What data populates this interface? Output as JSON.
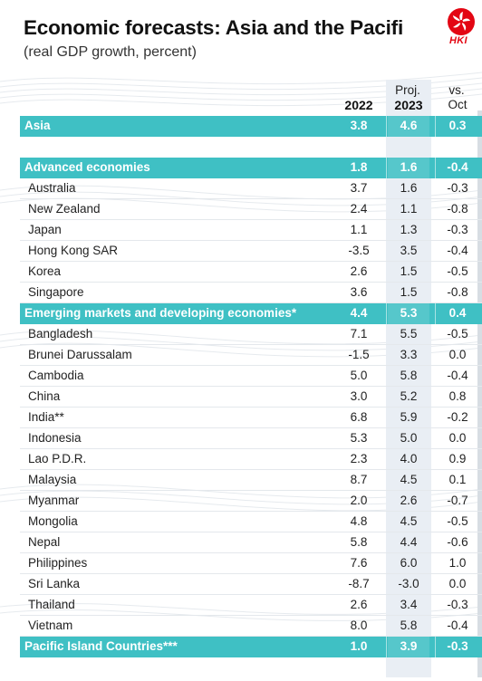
{
  "title": "Economic forecasts: Asia and the Pacifi",
  "subtitle": "(real GDP growth, percent)",
  "logo_text": "HKI",
  "columns": {
    "col1_top": "",
    "col1": "2022",
    "col2_top": "Proj.",
    "col2": "2023",
    "col3_top": "vs.",
    "col3": "Oct"
  },
  "chart_data": {
    "type": "table",
    "title": "Economic forecasts: Asia and the Pacifi",
    "subtitle": "(real GDP growth, percent)",
    "headers": [
      "",
      "2022",
      "Proj. 2023",
      "vs. Oct"
    ],
    "rows": [
      {
        "label": "Asia",
        "kind": "band",
        "values": [
          "3.8",
          "4.6",
          "0.3"
        ]
      },
      {
        "label": "",
        "kind": "blank",
        "values": [
          "",
          "",
          ""
        ]
      },
      {
        "label": "Advanced economies",
        "kind": "band",
        "values": [
          "1.8",
          "1.6",
          "-0.4"
        ]
      },
      {
        "label": "Australia",
        "kind": "country",
        "values": [
          "3.7",
          "1.6",
          "-0.3"
        ]
      },
      {
        "label": "New Zealand",
        "kind": "country",
        "values": [
          "2.4",
          "1.1",
          "-0.8"
        ]
      },
      {
        "label": "Japan",
        "kind": "country",
        "values": [
          "1.1",
          "1.3",
          "-0.3"
        ]
      },
      {
        "label": "Hong Kong SAR",
        "kind": "country",
        "values": [
          "-3.5",
          "3.5",
          "-0.4"
        ]
      },
      {
        "label": "Korea",
        "kind": "country",
        "values": [
          "2.6",
          "1.5",
          "-0.5"
        ]
      },
      {
        "label": "Singapore",
        "kind": "country",
        "values": [
          "3.6",
          "1.5",
          "-0.8"
        ]
      },
      {
        "label": "Emerging markets and developing economies*",
        "kind": "band",
        "values": [
          "4.4",
          "5.3",
          "0.4"
        ]
      },
      {
        "label": "Bangladesh",
        "kind": "country",
        "values": [
          "7.1",
          "5.5",
          "-0.5"
        ]
      },
      {
        "label": "Brunei Darussalam",
        "kind": "country",
        "values": [
          "-1.5",
          "3.3",
          "0.0"
        ]
      },
      {
        "label": "Cambodia",
        "kind": "country",
        "values": [
          "5.0",
          "5.8",
          "-0.4"
        ]
      },
      {
        "label": "China",
        "kind": "country",
        "values": [
          "3.0",
          "5.2",
          "0.8"
        ]
      },
      {
        "label": "India**",
        "kind": "country",
        "values": [
          "6.8",
          "5.9",
          "-0.2"
        ]
      },
      {
        "label": "Indonesia",
        "kind": "country",
        "values": [
          "5.3",
          "5.0",
          "0.0"
        ]
      },
      {
        "label": "Lao P.D.R.",
        "kind": "country",
        "values": [
          "2.3",
          "4.0",
          "0.9"
        ]
      },
      {
        "label": "Malaysia",
        "kind": "country",
        "values": [
          "8.7",
          "4.5",
          "0.1"
        ]
      },
      {
        "label": "Myanmar",
        "kind": "country",
        "values": [
          "2.0",
          "2.6",
          "-0.7"
        ]
      },
      {
        "label": "Mongolia",
        "kind": "country",
        "values": [
          "4.8",
          "4.5",
          "-0.5"
        ]
      },
      {
        "label": "Nepal",
        "kind": "country",
        "values": [
          "5.8",
          "4.4",
          "-0.6"
        ]
      },
      {
        "label": "Philippines",
        "kind": "country",
        "values": [
          "7.6",
          "6.0",
          "1.0"
        ]
      },
      {
        "label": "Sri Lanka",
        "kind": "country",
        "values": [
          "-8.7",
          "-3.0",
          "0.0"
        ]
      },
      {
        "label": "Thailand",
        "kind": "country",
        "values": [
          "2.6",
          "3.4",
          "-0.3"
        ]
      },
      {
        "label": "Vietnam",
        "kind": "country",
        "values": [
          "8.0",
          "5.8",
          "-0.4"
        ]
      },
      {
        "label": "Pacific Island Countries***",
        "kind": "band",
        "values": [
          "1.0",
          "3.9",
          "-0.3"
        ]
      }
    ]
  },
  "colors": {
    "band": "#3fc0c4",
    "proj_column": "#e9eef4",
    "logo": "#e30613"
  }
}
